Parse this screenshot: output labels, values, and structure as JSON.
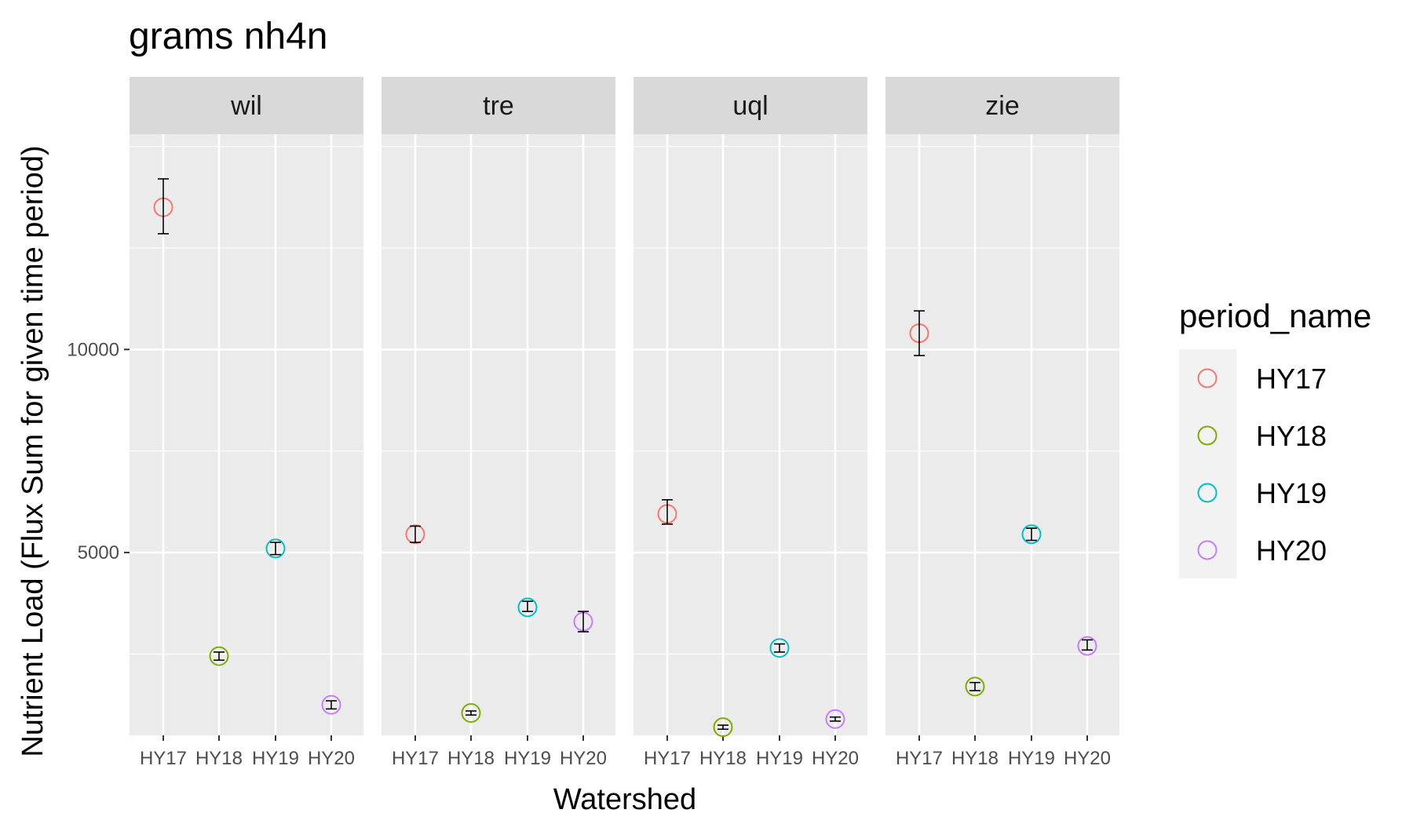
{
  "chart_data": {
    "type": "scatter",
    "title": "grams nh4n",
    "xlabel": "Watershed",
    "ylabel": "Nutrient Load (Flux Sum for given time period)",
    "categories": [
      "HY17",
      "HY18",
      "HY19",
      "HY20"
    ],
    "ylim": [
      500,
      15300
    ],
    "yticks": [
      5000,
      10000
    ],
    "grid": true,
    "legend": {
      "title": "period_name",
      "position": "right",
      "entries": [
        "HY17",
        "HY18",
        "HY19",
        "HY20"
      ]
    },
    "colors": {
      "HY17": "#F8766D",
      "HY18": "#7CAE00",
      "HY19": "#00BFC4",
      "HY20": "#C77CFF"
    },
    "panels": [
      {
        "name": "wil",
        "points": [
          {
            "x": "HY17",
            "y": 13500,
            "ymin": 12850,
            "ymax": 14200
          },
          {
            "x": "HY18",
            "y": 2450,
            "ymin": 2350,
            "ymax": 2550
          },
          {
            "x": "HY19",
            "y": 5100,
            "ymin": 4950,
            "ymax": 5250
          },
          {
            "x": "HY20",
            "y": 1250,
            "ymin": 1150,
            "ymax": 1350
          }
        ]
      },
      {
        "name": "tre",
        "points": [
          {
            "x": "HY17",
            "y": 5450,
            "ymin": 5250,
            "ymax": 5650
          },
          {
            "x": "HY18",
            "y": 1050,
            "ymin": 1000,
            "ymax": 1100
          },
          {
            "x": "HY19",
            "y": 3650,
            "ymin": 3550,
            "ymax": 3800
          },
          {
            "x": "HY20",
            "y": 3300,
            "ymin": 3050,
            "ymax": 3550
          }
        ]
      },
      {
        "name": "uql",
        "points": [
          {
            "x": "HY17",
            "y": 5950,
            "ymin": 5700,
            "ymax": 6300
          },
          {
            "x": "HY18",
            "y": 700,
            "ymin": 650,
            "ymax": 750
          },
          {
            "x": "HY19",
            "y": 2650,
            "ymin": 2550,
            "ymax": 2750
          },
          {
            "x": "HY20",
            "y": 900,
            "ymin": 850,
            "ymax": 950
          }
        ]
      },
      {
        "name": "zie",
        "points": [
          {
            "x": "HY17",
            "y": 10400,
            "ymin": 9850,
            "ymax": 10950
          },
          {
            "x": "HY18",
            "y": 1700,
            "ymin": 1600,
            "ymax": 1800
          },
          {
            "x": "HY19",
            "y": 5450,
            "ymin": 5300,
            "ymax": 5600
          },
          {
            "x": "HY20",
            "y": 2700,
            "ymin": 2600,
            "ymax": 2850
          }
        ]
      }
    ]
  }
}
